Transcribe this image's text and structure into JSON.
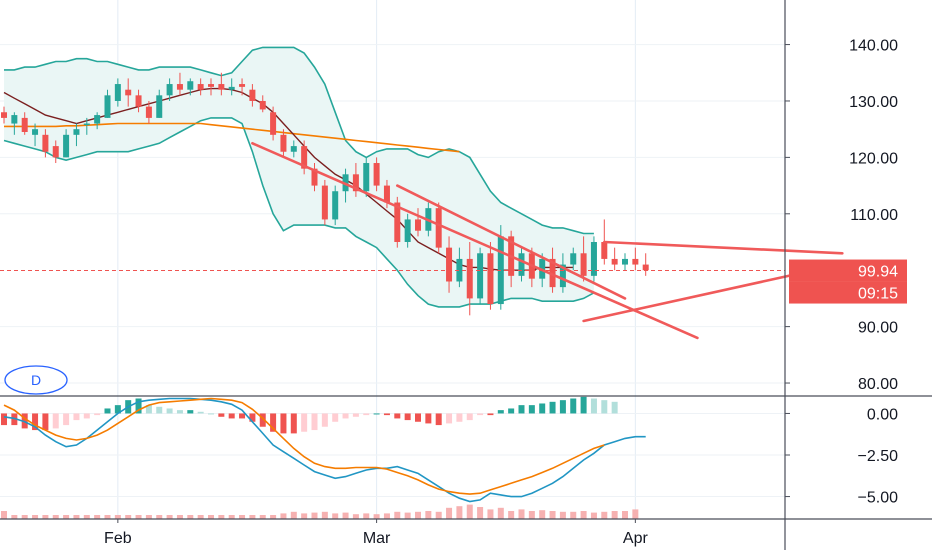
{
  "chart_data": {
    "type": "candlestick",
    "interval_label": "D",
    "colors": {
      "up": "#26a69a",
      "down": "#ef5350",
      "bollinger_band": "#26a69a",
      "bollinger_fill": "#eaf6f5",
      "ma_short": "#7b1f1f",
      "ma_long": "#f57c00",
      "trendline": "#f05a5a",
      "macd_line": "#2196c4",
      "signal_line": "#f57c00",
      "hist_pos_strong": "#26a69a",
      "hist_pos_weak": "#b2dfdb",
      "hist_neg_strong": "#ef5350",
      "hist_neg_weak": "#ffcdd2",
      "volume_bar": "#f6b1b1",
      "price_line": "#ef5350",
      "axis_text": "#131722"
    },
    "x_axis": {
      "labels": [
        "Feb",
        "Mar",
        "Apr"
      ],
      "label_index": [
        11,
        36,
        61
      ]
    },
    "price_axis": {
      "ticks": [
        "140.00",
        "130.00",
        "120.00",
        "110.00",
        "90.00",
        "80.00"
      ],
      "tick_values": [
        140,
        130,
        120,
        110,
        90,
        80
      ],
      "range": [
        77.7,
        147.9
      ]
    },
    "indicator_axis": {
      "ticks": [
        "0.00",
        "−2.50",
        "−5.00"
      ],
      "tick_values": [
        0,
        -2.5,
        -5
      ],
      "range": [
        -6.35,
        1.05
      ]
    },
    "last_price": {
      "value": 99.94,
      "label": "99.94",
      "countdown": "09:15"
    },
    "candles": [
      [
        128,
        129,
        126,
        127
      ],
      [
        126,
        128,
        124,
        127.5
      ],
      [
        127,
        128,
        124,
        124.5
      ],
      [
        124,
        126,
        122,
        125
      ],
      [
        124,
        125,
        120,
        121
      ],
      [
        122,
        123,
        119,
        120
      ],
      [
        120,
        125,
        120,
        124
      ],
      [
        124,
        126,
        122,
        125
      ],
      [
        126,
        127,
        124,
        126
      ],
      [
        126,
        128,
        125,
        127.5
      ],
      [
        127,
        132,
        127,
        131
      ],
      [
        130,
        134,
        129,
        133
      ],
      [
        132,
        134,
        129,
        131
      ],
      [
        131,
        132,
        128,
        129
      ],
      [
        129,
        130,
        126,
        127
      ],
      [
        127,
        132,
        127,
        131
      ],
      [
        131,
        134,
        130,
        133
      ],
      [
        133,
        135,
        131,
        132
      ],
      [
        132,
        134,
        131,
        133.5
      ],
      [
        133,
        134,
        131,
        132
      ],
      [
        133,
        134,
        131,
        132.5
      ],
      [
        133,
        135,
        131,
        132
      ],
      [
        132,
        134,
        131,
        132.5
      ],
      [
        133,
        134,
        131,
        132.5
      ],
      [
        132,
        133,
        129,
        130
      ],
      [
        130,
        131,
        128,
        128.5
      ],
      [
        128,
        129,
        123,
        124
      ],
      [
        124,
        125,
        120,
        121
      ],
      [
        121,
        123,
        120,
        122
      ],
      [
        122,
        123,
        117,
        118
      ],
      [
        118,
        119,
        114,
        115
      ],
      [
        115,
        116,
        108,
        109
      ],
      [
        109,
        115,
        108,
        114
      ],
      [
        114,
        118,
        112,
        117
      ],
      [
        117,
        119,
        113,
        114
      ],
      [
        114,
        120,
        113,
        119
      ],
      [
        119,
        120,
        114,
        115
      ],
      [
        115,
        116,
        111,
        112
      ],
      [
        112,
        113,
        104,
        105
      ],
      [
        105,
        110,
        104,
        109
      ],
      [
        109,
        111,
        106,
        107
      ],
      [
        107,
        112,
        106,
        111
      ],
      [
        111,
        112,
        103,
        104
      ],
      [
        104,
        106,
        96,
        98
      ],
      [
        98,
        104,
        97,
        102
      ],
      [
        102,
        105,
        92,
        95
      ],
      [
        95,
        104,
        94,
        103
      ],
      [
        103,
        105,
        93,
        94
      ],
      [
        94,
        108,
        93,
        106
      ],
      [
        106,
        107,
        97,
        99
      ],
      [
        99,
        104,
        98,
        103
      ],
      [
        103,
        104,
        97,
        98.5
      ],
      [
        98.5,
        103,
        97,
        102
      ],
      [
        102,
        104,
        96,
        97
      ],
      [
        97,
        103,
        96,
        101
      ],
      [
        101,
        104,
        100,
        103
      ],
      [
        103,
        106,
        98,
        99
      ],
      [
        99,
        106,
        98,
        105
      ],
      [
        105,
        109,
        101,
        102
      ],
      [
        102,
        104,
        100,
        101
      ],
      [
        101,
        103,
        100,
        102
      ],
      [
        102,
        104,
        100,
        101
      ],
      [
        101,
        103,
        99,
        100
      ]
    ],
    "bollinger": {
      "upper": [
        135.5,
        135.5,
        136,
        136,
        136.5,
        137,
        137,
        137.5,
        137.5,
        137,
        137,
        136.5,
        136,
        135.5,
        135.5,
        136,
        136,
        136,
        136,
        135.5,
        135,
        134.5,
        135,
        137,
        139,
        139.5,
        139.5,
        139.5,
        139.5,
        138.5,
        136,
        133,
        128,
        123,
        121,
        120,
        121,
        121.5,
        121.5,
        121.5,
        120.5,
        120,
        121,
        121.5,
        121,
        120,
        117,
        114,
        112,
        111,
        110,
        109,
        108,
        107.5,
        107.5,
        107,
        106.5,
        106.5
      ],
      "lower": [
        123,
        122.5,
        122,
        121.5,
        121,
        120,
        119.5,
        120,
        120.5,
        121,
        121,
        121,
        121,
        121.5,
        122,
        122.5,
        123.5,
        124.5,
        125.5,
        126.5,
        127,
        127,
        127,
        126,
        121,
        115,
        110,
        107,
        108,
        108,
        108,
        108,
        107.5,
        107.5,
        106,
        105,
        104,
        102,
        100,
        97.5,
        95.5,
        94,
        93.5,
        93.5,
        93.5,
        94,
        94,
        94,
        94.5,
        95,
        95,
        95,
        94.5,
        94.5,
        94.5,
        94.5,
        95,
        96
      ]
    },
    "ma_short": [
      131.5,
      130.5,
      129.5,
      128.5,
      127.5,
      127,
      126.5,
      126,
      126.5,
      127,
      127.5,
      128,
      128.5,
      129,
      129.5,
      130,
      130.5,
      131,
      131.5,
      132,
      132.2,
      132.2,
      132,
      131.5,
      130.5,
      129.5,
      128,
      126,
      124,
      122,
      120,
      118.5,
      117,
      116,
      115,
      113.5,
      112,
      110.5,
      109,
      107,
      105,
      104,
      103,
      102,
      101,
      100.5,
      100.5,
      100.2,
      100,
      100,
      100,
      100,
      100.5,
      100.5,
      100.5,
      100.5
    ],
    "ma_long": [
      125.5,
      125.5,
      125.5,
      125.5,
      125.5,
      125.5,
      125.6,
      125.6,
      125.7,
      125.8,
      125.9,
      126,
      126,
      126,
      126,
      126,
      126,
      126,
      126,
      126,
      125.8,
      125.6,
      125.4,
      125.2,
      125,
      124.8,
      124.6,
      124.4,
      124.2,
      124,
      123.8,
      123.6,
      123.4,
      123.2,
      123,
      122.8,
      122.6,
      122.4,
      122.2,
      122,
      121.8,
      121.6,
      121.4,
      121.2,
      121
    ],
    "trendlines": [
      {
        "x1": 24,
        "y1": 122.5,
        "x2": 67,
        "y2": 88
      },
      {
        "x1": 38,
        "y1": 115,
        "x2": 60,
        "y2": 95
      },
      {
        "x1": 58,
        "y1": 105,
        "x2": 81,
        "y2": 103
      },
      {
        "x1": 56,
        "y1": 91,
        "x2": 82,
        "y2": 101.5
      }
    ],
    "macd": [
      -0.2,
      -0.3,
      -0.5,
      -0.8,
      -1.3,
      -1.7,
      -2.0,
      -1.9,
      -1.5,
      -1.0,
      -0.5,
      0,
      0.4,
      0.7,
      0.8,
      0.85,
      0.9,
      0.9,
      0.9,
      0.85,
      0.8,
      0.7,
      0.55,
      0.2,
      -0.5,
      -1.2,
      -1.9,
      -2.3,
      -2.7,
      -3.1,
      -3.5,
      -3.7,
      -3.9,
      -3.8,
      -3.6,
      -3.4,
      -3.3,
      -3.3,
      -3.2,
      -3.4,
      -3.6,
      -4.0,
      -4.4,
      -4.8,
      -5.1,
      -5.3,
      -5.2,
      -4.8,
      -4.9,
      -5.0,
      -5.0,
      -4.8,
      -4.5,
      -4.2,
      -3.8,
      -3.3,
      -2.8,
      -2.4,
      -1.9,
      -1.7,
      -1.5,
      -1.4,
      -1.4
    ],
    "signal": [
      0.5,
      0.2,
      -0.3,
      -0.7,
      -1.0,
      -1.3,
      -1.5,
      -1.6,
      -1.5,
      -1.3,
      -1.0,
      -0.6,
      -0.2,
      0.2,
      0.5,
      0.65,
      0.7,
      0.75,
      0.8,
      0.85,
      0.9,
      0.85,
      0.8,
      0.65,
      0.25,
      -0.3,
      -0.9,
      -1.5,
      -2.1,
      -2.6,
      -3.0,
      -3.2,
      -3.3,
      -3.3,
      -3.25,
      -3.25,
      -3.25,
      -3.35,
      -3.55,
      -3.75,
      -4.0,
      -4.3,
      -4.55,
      -4.7,
      -4.8,
      -4.85,
      -4.8,
      -4.6,
      -4.4,
      -4.2,
      -4.0,
      -3.8,
      -3.55,
      -3.3,
      -3.0,
      -2.7,
      -2.4,
      -2.1,
      -1.9
    ],
    "histogram": [
      -0.7,
      -0.7,
      -0.9,
      -1.0,
      -1.0,
      -0.9,
      -0.7,
      -0.4,
      -0.3,
      -0.1,
      0.3,
      0.5,
      0.8,
      0.9,
      0.5,
      0.4,
      0.3,
      0.2,
      0.2,
      0.1,
      0,
      -0.2,
      -0.3,
      -0.3,
      -0.5,
      -0.8,
      -1.1,
      -1.2,
      -1.2,
      -1.1,
      -1.0,
      -0.8,
      -0.5,
      -0.3,
      -0.2,
      -0.1,
      0,
      -0.1,
      -0.3,
      -0.4,
      -0.5,
      -0.6,
      -0.7,
      -0.6,
      -0.5,
      -0.4,
      -0.1,
      -0.1,
      0.2,
      0.3,
      0.5,
      0.5,
      0.6,
      0.7,
      0.8,
      0.9,
      1.0,
      0.9,
      0.8,
      0.7
    ],
    "volume": [
      1.0,
      0.5,
      0.5,
      0.5,
      0.5,
      0.5,
      0.5,
      0.5,
      0.5,
      0.5,
      0.5,
      0.5,
      0.5,
      0.5,
      0.5,
      0.5,
      0.5,
      0.5,
      0.5,
      0.5,
      0.5,
      0.5,
      0.5,
      0.5,
      0.5,
      0.5,
      0.5,
      0.7,
      0.9,
      0.7,
      0.8,
      0.9,
      0.7,
      0.8,
      0.6,
      0.7,
      0.6,
      0.7,
      0.9,
      0.8,
      0.9,
      1.0,
      0.9,
      1.4,
      1.6,
      1.8,
      1.5,
      1.2,
      1.4,
      1.0,
      1.2,
      1.0,
      1.1,
      1.0,
      0.9,
      0.9,
      1.0,
      0.8,
      0.9,
      1.0,
      1.0,
      1.2
    ]
  }
}
